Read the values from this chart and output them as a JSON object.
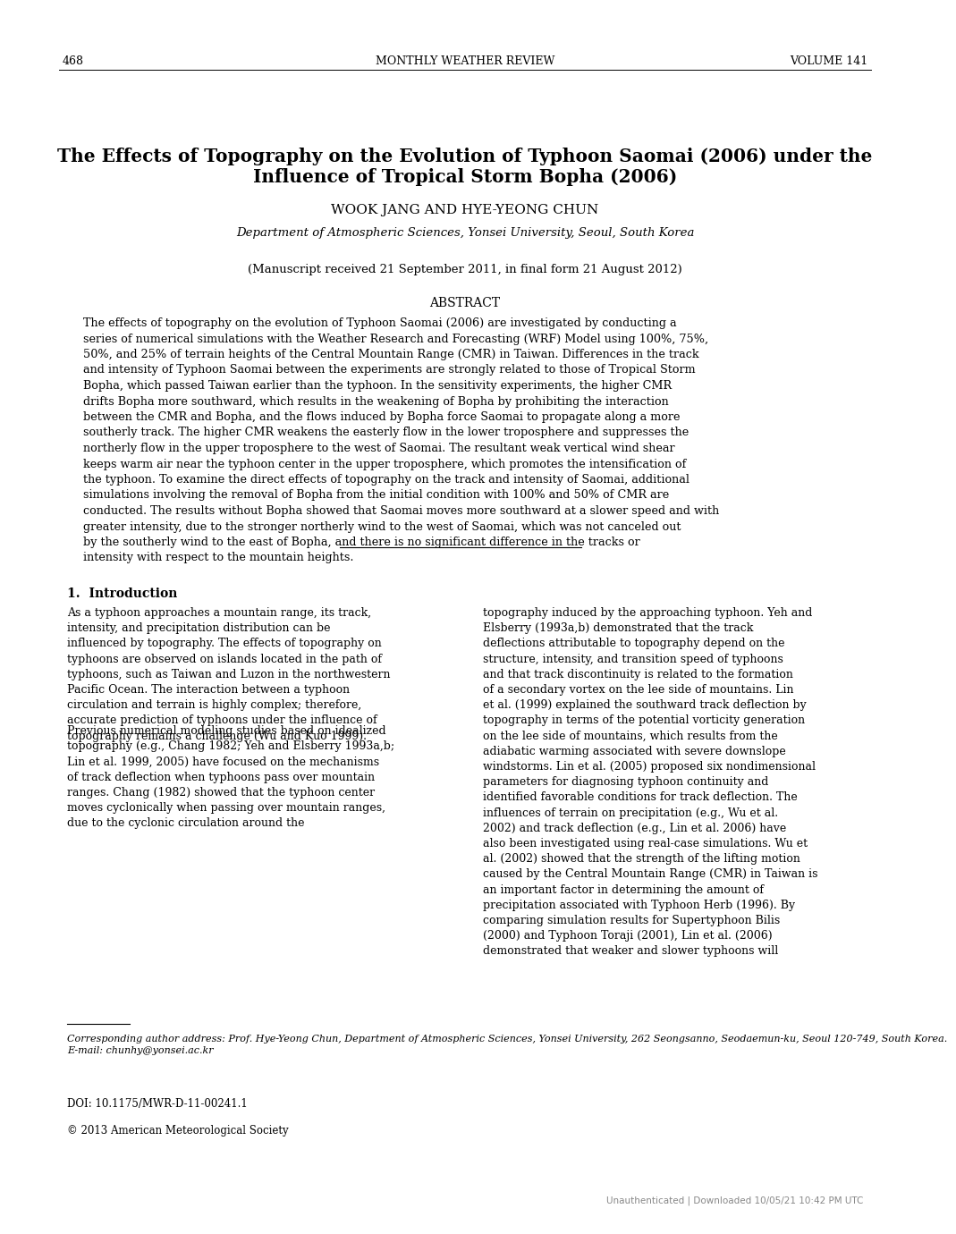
{
  "page_number": "468",
  "journal_title": "MONTHLY WEATHER REVIEW",
  "volume": "VOLUME 141",
  "paper_title_line1": "The Effects of Topography on the Evolution of Typhoon Saomai (2006) under the",
  "paper_title_line2": "Influence of Tropical Storm Bopha (2006)",
  "authors": "WOOK JANG AND HYE-YEONG CHUN",
  "affiliation": "Department of Atmospheric Sciences, Yonsei University, Seoul, South Korea",
  "manuscript_info": "(Manuscript received 21 September 2011, in final form 21 August 2012)",
  "abstract_header": "ABSTRACT",
  "abstract_text": "The effects of topography on the evolution of Typhoon Saomai (2006) are investigated by conducting a series of numerical simulations with the Weather Research and Forecasting (WRF) Model using 100%, 75%, 50%, and 25% of terrain heights of the Central Mountain Range (CMR) in Taiwan. Differences in the track and intensity of Typhoon Saomai between the experiments are strongly related to those of Tropical Storm Bopha, which passed Taiwan earlier than the typhoon. In the sensitivity experiments, the higher CMR drifts Bopha more southward, which results in the weakening of Bopha by prohibiting the interaction between the CMR and Bopha, and the flows induced by Bopha force Saomai to propagate along a more southerly track. The higher CMR weakens the easterly flow in the lower troposphere and suppresses the northerly flow in the upper troposphere to the west of Saomai. The resultant weak vertical wind shear keeps warm air near the typhoon center in the upper troposphere, which promotes the intensification of the typhoon. To examine the direct effects of topography on the track and intensity of Saomai, additional simulations involving the removal of Bopha from the initial condition with 100% and 50% of CMR are conducted. The results without Bopha showed that Saomai moves more southward at a slower speed and with greater intensity, due to the stronger northerly wind to the west of Saomai, which was not canceled out by the southerly wind to the east of Bopha, and there is no significant difference in the tracks or intensity with respect to the mountain heights.",
  "section_header": "1.  Introduction",
  "intro_col1": "As a typhoon approaches a mountain range, its track, intensity, and precipitation distribution can be influenced by topography. The effects of topography on typhoons are observed on islands located in the path of typhoons, such as Taiwan and Luzon in the northwestern Pacific Ocean. The interaction between a typhoon circulation and terrain is highly complex; therefore, accurate prediction of typhoons under the influence of topography remains a challenge (Wu and Kuo 1999).\n    Previous numerical modeling studies based on idealized topography (e.g., Chang 1982; Yeh and Elsberry 1993a,b; Lin et al. 1999, 2005) have focused on the mechanisms of track deflection when typhoons pass over mountain ranges. Chang (1982) showed that the typhoon center moves cyclonically when passing over mountain ranges, due to the cyclonic circulation around the",
  "intro_col2": "topography induced by the approaching typhoon. Yeh and Elsberry (1993a,b) demonstrated that the track deflections attributable to topography depend on the structure, intensity, and transition speed of typhoons and that track discontinuity is related to the formation of a secondary vortex on the lee side of mountains. Lin et al. (1999) explained the southward track deflection by topography in terms of the potential vorticity generation on the lee side of mountains, which results from the adiabatic warming associated with severe downslope windstorms. Lin et al. (2005) proposed six nondimensional parameters for diagnosing typhoon continuity and identified favorable conditions for track deflection. The influences of terrain on precipitation (e.g., Wu et al. 2002) and track deflection (e.g., Lin et al. 2006) have also been investigated using real-case simulations. Wu et al. (2002) showed that the strength of the lifting motion caused by the Central Mountain Range (CMR) in Taiwan is an important factor in determining the amount of precipitation associated with Typhoon Herb (1996). By comparing simulation results for Supertyphoon Bilis (2000) and Typhoon Toraji (2001), Lin et al. (2006) demonstrated that weaker and slower typhoons will",
  "footnote_line": "___________",
  "corresponding_author": "Corresponding author address: Prof. Hye-Yeong Chun, Department of Atmospheric Sciences, Yonsei University, 262 Seongsanno, Seodaemun-ku, Seoul 120-749, South Korea.\nE-mail: chunhy@yonsei.ac.kr",
  "doi": "DOI: 10.1175/MWR-D-11-00241.1",
  "copyright": "© 2013 American Meteorological Society",
  "watermark": "Unauthenticated | Downloaded 10/05/21 10:42 PM UTC",
  "background_color": "#ffffff",
  "text_color": "#000000"
}
